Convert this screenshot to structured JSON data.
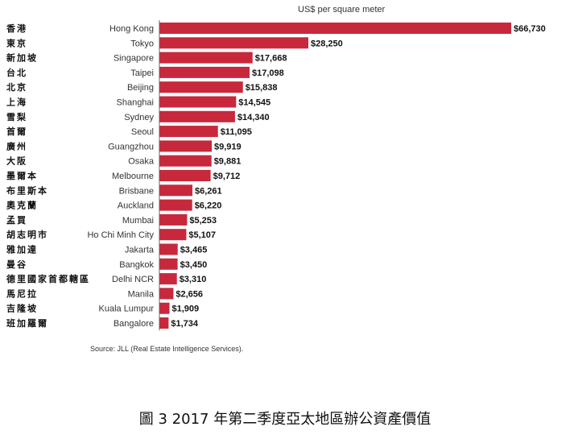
{
  "chart_data": {
    "type": "bar",
    "orientation": "horizontal",
    "unit_label": "US$ per square meter",
    "categories": [
      "Hong Kong",
      "Tokyo",
      "Singapore",
      "Taipei",
      "Beijing",
      "Shanghai",
      "Sydney",
      "Seoul",
      "Guangzhou",
      "Osaka",
      "Melbourne",
      "Brisbane",
      "Auckland",
      "Mumbai",
      "Ho Chi Minh City",
      "Jakarta",
      "Bangkok",
      "Delhi NCR",
      "Manila",
      "Kuala Lumpur",
      "Bangalore"
    ],
    "categories_zh": [
      "香港",
      "東京",
      "新加坡",
      "台北",
      "北京",
      "上海",
      "雪梨",
      "首爾",
      "廣州",
      "大阪",
      "墨爾本",
      "布里斯本",
      "奧克蘭",
      "孟買",
      "胡志明市",
      "雅加達",
      "曼谷",
      "德里國家首都轄區",
      "馬尼拉",
      "吉隆坡",
      "班加羅爾"
    ],
    "values": [
      66730,
      28250,
      17668,
      17098,
      15838,
      14545,
      14340,
      11095,
      9919,
      9881,
      9712,
      6261,
      6220,
      5253,
      5107,
      3465,
      3450,
      3310,
      2656,
      1909,
      1734
    ],
    "value_labels": [
      "$66,730",
      "$28,250",
      "$17,668",
      "$17,098",
      "$15,838",
      "$14,545",
      "$14,340",
      "$11,095",
      "$9,919",
      "$9,881",
      "$9,712",
      "$6,261",
      "$6,220",
      "$5,253",
      "$5,107",
      "$3,465",
      "$3,450",
      "$3,310",
      "$2,656",
      "$1,909",
      "$1,734"
    ],
    "bar_color": "#c8283c",
    "source": "Source: JLL (Real Estate Intelligence Services).",
    "caption": "圖 3 2017 年第二季度亞太地區辦公資產價值"
  }
}
